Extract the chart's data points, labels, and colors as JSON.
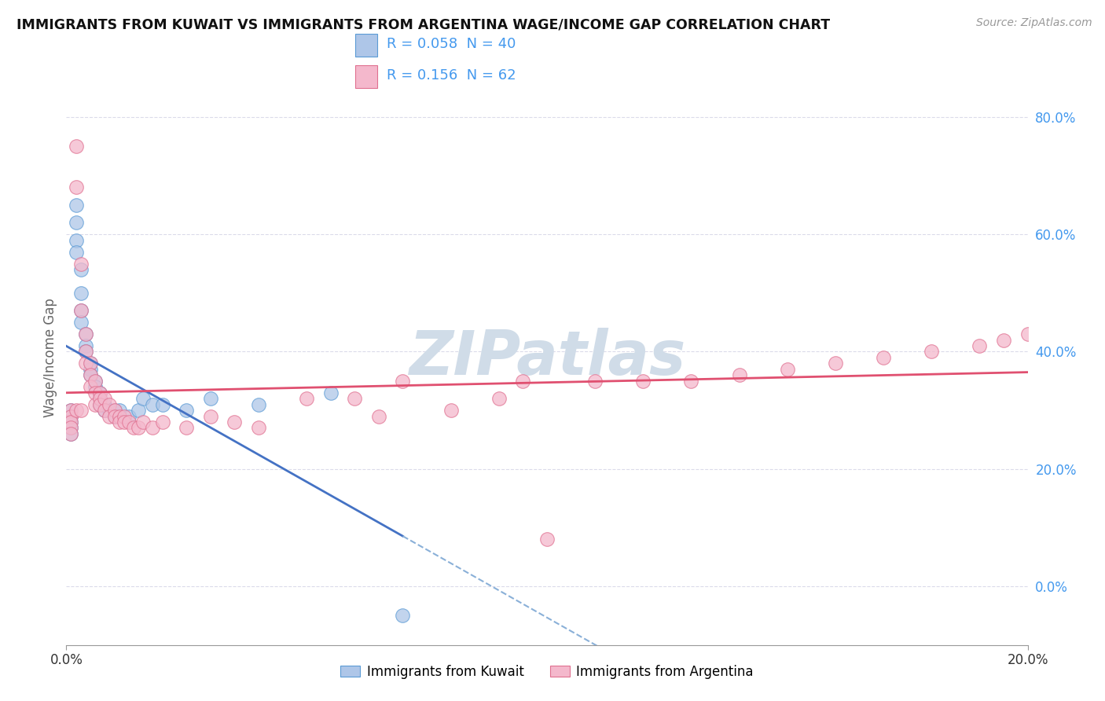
{
  "title": "IMMIGRANTS FROM KUWAIT VS IMMIGRANTS FROM ARGENTINA WAGE/INCOME GAP CORRELATION CHART",
  "source": "Source: ZipAtlas.com",
  "ylabel": "Wage/Income Gap",
  "legend1_label": "R = 0.058  N = 40",
  "legend2_label": "R = 0.156  N = 62",
  "legend_label_kuwait": "Immigrants from Kuwait",
  "legend_label_argentina": "Immigrants from Argentina",
  "color_kuwait_fill": "#aec6e8",
  "color_kuwait_edge": "#5b9bd5",
  "color_argentina_fill": "#f4b8cc",
  "color_argentina_edge": "#e07090",
  "color_line_kuwait_solid": "#4472c4",
  "color_line_kuwait_dash": "#8ab0d8",
  "color_line_argentina": "#e05070",
  "watermark_color": "#d0dce8",
  "background": "#ffffff",
  "grid_color": "#d8d8e8",
  "ytick_color": "#4499ee",
  "xlim": [
    0.0,
    0.2
  ],
  "ylim": [
    -0.1,
    0.88
  ],
  "yticks": [
    0.0,
    0.2,
    0.4,
    0.6,
    0.8
  ],
  "ytick_labels": [
    "0.0%",
    "20.0%",
    "40.0%",
    "60.0%",
    "80.0%"
  ],
  "kuwait_x": [
    0.001,
    0.001,
    0.001,
    0.001,
    0.001,
    0.002,
    0.002,
    0.002,
    0.002,
    0.003,
    0.003,
    0.003,
    0.003,
    0.004,
    0.004,
    0.004,
    0.005,
    0.005,
    0.005,
    0.006,
    0.006,
    0.007,
    0.007,
    0.007,
    0.008,
    0.008,
    0.009,
    0.01,
    0.01,
    0.011,
    0.013,
    0.015,
    0.016,
    0.018,
    0.02,
    0.025,
    0.03,
    0.04,
    0.055,
    0.07
  ],
  "kuwait_y": [
    0.3,
    0.29,
    0.28,
    0.27,
    0.26,
    0.65,
    0.62,
    0.59,
    0.57,
    0.54,
    0.5,
    0.47,
    0.45,
    0.43,
    0.41,
    0.4,
    0.38,
    0.37,
    0.36,
    0.35,
    0.34,
    0.33,
    0.32,
    0.31,
    0.31,
    0.3,
    0.3,
    0.3,
    0.29,
    0.3,
    0.29,
    0.3,
    0.32,
    0.31,
    0.31,
    0.3,
    0.32,
    0.31,
    0.33,
    -0.05
  ],
  "argentina_x": [
    0.001,
    0.001,
    0.001,
    0.001,
    0.001,
    0.002,
    0.002,
    0.002,
    0.003,
    0.003,
    0.003,
    0.004,
    0.004,
    0.004,
    0.005,
    0.005,
    0.005,
    0.006,
    0.006,
    0.006,
    0.007,
    0.007,
    0.007,
    0.008,
    0.008,
    0.009,
    0.009,
    0.01,
    0.01,
    0.011,
    0.011,
    0.012,
    0.012,
    0.013,
    0.014,
    0.015,
    0.016,
    0.018,
    0.02,
    0.025,
    0.03,
    0.035,
    0.04,
    0.05,
    0.06,
    0.065,
    0.07,
    0.08,
    0.09,
    0.095,
    0.1,
    0.11,
    0.12,
    0.13,
    0.14,
    0.15,
    0.16,
    0.17,
    0.18,
    0.19,
    0.195,
    0.2
  ],
  "argentina_y": [
    0.3,
    0.29,
    0.28,
    0.27,
    0.26,
    0.75,
    0.68,
    0.3,
    0.55,
    0.47,
    0.3,
    0.43,
    0.4,
    0.38,
    0.38,
    0.36,
    0.34,
    0.35,
    0.33,
    0.31,
    0.33,
    0.32,
    0.31,
    0.32,
    0.3,
    0.31,
    0.29,
    0.3,
    0.29,
    0.29,
    0.28,
    0.29,
    0.28,
    0.28,
    0.27,
    0.27,
    0.28,
    0.27,
    0.28,
    0.27,
    0.29,
    0.28,
    0.27,
    0.32,
    0.32,
    0.29,
    0.35,
    0.3,
    0.32,
    0.35,
    0.08,
    0.35,
    0.35,
    0.35,
    0.36,
    0.37,
    0.38,
    0.39,
    0.4,
    0.41,
    0.42,
    0.43
  ]
}
